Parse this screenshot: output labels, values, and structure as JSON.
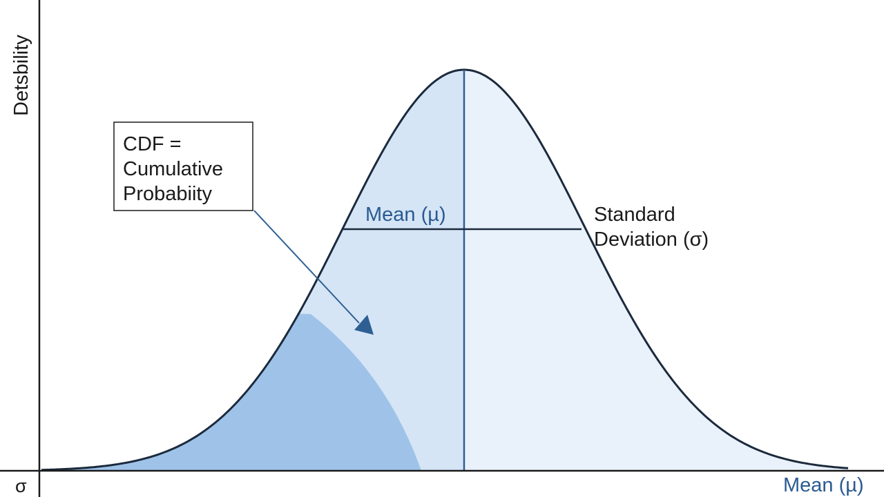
{
  "diagram": {
    "y_axis_label": "Detsbility",
    "x_axis_label": "Mean (µ)",
    "origin_label": "σ",
    "callout": {
      "lines": [
        "CDF =",
        "Cumulative",
        "Probabiity"
      ]
    },
    "mean_label": "Mean (µ)",
    "std_label": {
      "lines": [
        "Standard",
        "Deviation (σ)"
      ]
    },
    "colors": {
      "axis": "#1a1a1a",
      "curve": "#1b2a3c",
      "fill_light": "#e9f1fb",
      "fill_mid": "#d5e5f6",
      "fill_dark": "#9fc3e8",
      "accent": "#2e5f93",
      "label_blue": "#2a5a90"
    }
  }
}
